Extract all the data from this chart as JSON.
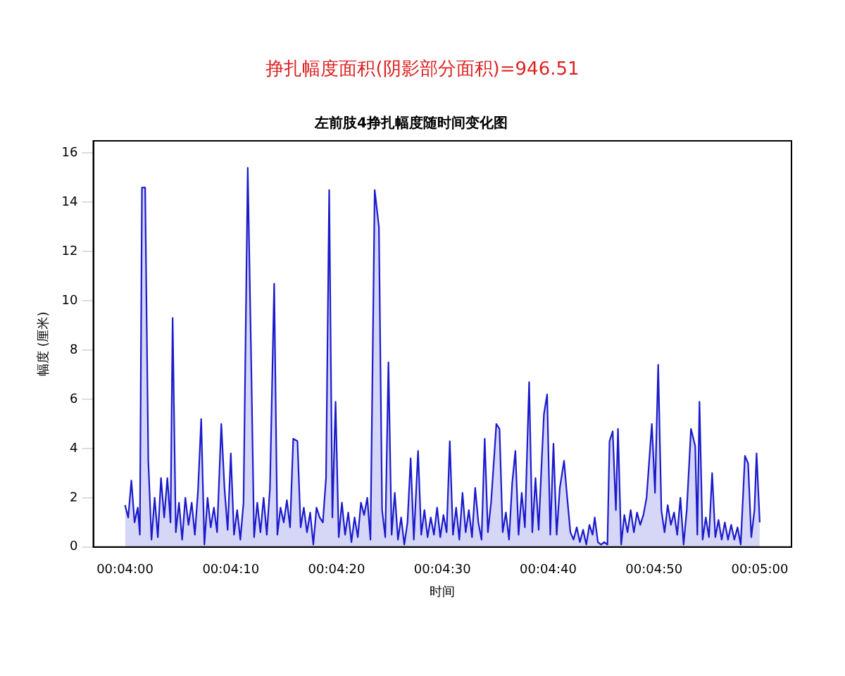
{
  "chart_data": {
    "type": "area",
    "title": "左前肢4挣扎幅度随时间变化图",
    "xlabel": "时间",
    "ylabel": "幅度 (厘米)",
    "annotations": [
      "挣扎幅度面积(阴影部分面积)=946.51"
    ],
    "x": [
      240,
      240.3,
      240.6,
      240.9,
      241.2,
      241.4,
      241.6,
      241.9,
      242.2,
      242.5,
      242.8,
      243.1,
      243.4,
      243.7,
      244.0,
      244.3,
      244.5,
      244.8,
      245.1,
      245.4,
      245.7,
      246.0,
      246.3,
      246.6,
      246.9,
      247.2,
      247.5,
      247.8,
      248.1,
      248.4,
      248.7,
      249.1,
      249.4,
      249.7,
      250.0,
      250.3,
      250.6,
      250.9,
      251.2,
      251.6,
      251.9,
      252.2,
      252.5,
      252.8,
      253.1,
      253.4,
      253.7,
      254.1,
      254.4,
      254.7,
      255.0,
      255.3,
      255.6,
      255.9,
      256.3,
      256.6,
      256.9,
      257.2,
      257.5,
      257.8,
      258.1,
      258.4,
      258.7,
      259.0,
      259.3,
      259.6,
      259.9,
      260.2,
      260.5,
      260.8,
      261.1,
      261.4,
      261.7,
      262.0,
      262.3,
      262.6,
      262.9,
      263.2,
      263.6,
      264.0,
      264.3,
      264.6,
      264.9,
      265.2,
      265.5,
      265.8,
      266.1,
      266.4,
      266.7,
      267.0,
      267.3,
      267.7,
      268.0,
      268.3,
      268.6,
      268.9,
      269.2,
      269.5,
      269.8,
      270.1,
      270.4,
      270.7,
      271.0,
      271.3,
      271.6,
      271.9,
      272.2,
      272.5,
      272.8,
      273.1,
      273.4,
      273.7,
      274.0,
      274.3,
      274.6,
      275.1,
      275.4,
      275.7,
      276.0,
      276.3,
      276.6,
      276.9,
      277.2,
      277.5,
      277.8,
      278.2,
      278.5,
      278.8,
      279.1,
      279.4,
      279.6,
      279.9,
      280.2,
      280.5,
      280.8,
      281.1,
      281.5,
      281.8,
      282.1,
      282.4,
      282.7,
      283.0,
      283.3,
      283.6,
      283.9,
      284.2,
      284.4,
      284.7,
      285.0,
      285.3,
      285.6,
      285.8,
      286.1,
      286.4,
      286.6,
      286.9,
      287.2,
      287.5,
      287.8,
      288.1,
      288.4,
      288.7,
      289.0,
      289.3,
      289.8,
      290.1,
      290.4,
      290.7,
      291.0,
      291.3,
      291.6,
      291.9,
      292.2,
      292.5,
      292.8,
      293.1,
      293.5,
      293.9,
      294.1,
      294.3,
      294.6,
      294.9,
      295.2,
      295.5,
      295.8,
      296.1,
      296.4,
      296.7,
      297.0,
      297.3,
      297.6,
      297.9,
      298.2,
      298.6,
      298.9,
      299.2,
      299.5,
      299.7,
      300.0
    ],
    "series": [
      {
        "color": "#1a1acc",
        "values": [
          1.7,
          1.2,
          2.7,
          1.0,
          1.6,
          0.5,
          14.6,
          14.6,
          3.5,
          0.3,
          2.0,
          0.4,
          2.8,
          1.2,
          2.8,
          1.0,
          9.3,
          0.6,
          1.8,
          0.3,
          2.0,
          0.9,
          1.8,
          0.5,
          2.3,
          5.2,
          0.1,
          2.0,
          0.8,
          1.6,
          0.6,
          5.0,
          2.4,
          0.7,
          3.8,
          0.5,
          1.5,
          0.3,
          1.8,
          15.4,
          8.2,
          0.4,
          1.8,
          0.6,
          2.0,
          0.5,
          2.4,
          10.7,
          0.5,
          1.6,
          1.0,
          1.9,
          0.8,
          4.4,
          4.3,
          0.8,
          1.6,
          0.6,
          1.4,
          0.1,
          1.6,
          1.2,
          1.0,
          2.8,
          14.5,
          1.2,
          5.9,
          0.4,
          1.8,
          0.5,
          1.4,
          0.2,
          1.2,
          0.4,
          1.8,
          1.3,
          2.0,
          0.3,
          14.5,
          13.0,
          1.5,
          0.4,
          7.5,
          0.5,
          2.2,
          0.3,
          1.2,
          0.1,
          1.0,
          3.6,
          0.3,
          3.9,
          0.5,
          1.5,
          0.4,
          1.2,
          0.5,
          1.6,
          0.4,
          1.3,
          0.6,
          4.3,
          0.5,
          1.6,
          0.3,
          2.2,
          0.6,
          1.5,
          0.4,
          2.4,
          1.0,
          0.3,
          4.4,
          0.6,
          1.8,
          5.0,
          4.8,
          0.6,
          1.4,
          0.3,
          2.6,
          3.9,
          0.5,
          2.2,
          0.8,
          6.7,
          0.6,
          2.8,
          0.7,
          3.6,
          5.4,
          6.2,
          0.5,
          4.2,
          0.5,
          2.4,
          3.5,
          2.0,
          0.6,
          0.3,
          0.8,
          0.2,
          0.7,
          0.1,
          0.9,
          0.5,
          1.2,
          0.2,
          0.1,
          0.2,
          0.1,
          4.3,
          4.7,
          1.5,
          4.8,
          0.1,
          1.3,
          0.6,
          1.5,
          0.6,
          1.4,
          0.9,
          1.3,
          2.0,
          5.0,
          2.2,
          7.4,
          1.5,
          0.6,
          1.7,
          0.9,
          1.4,
          0.5,
          2.0,
          0.1,
          1.5,
          4.8,
          4.1,
          0.5,
          5.9,
          0.3,
          1.2,
          0.4,
          3.0,
          0.4,
          1.1,
          0.3,
          1.0,
          0.3,
          0.9,
          0.3,
          0.8,
          0.1,
          3.7,
          3.4,
          0.4,
          1.5,
          3.8,
          1.0
        ]
      }
    ],
    "xlim": [
      237,
      303
    ],
    "xticks": [
      {
        "value": 240,
        "label": "00:04:00"
      },
      {
        "value": 250,
        "label": "00:04:10"
      },
      {
        "value": 260,
        "label": "00:04:20"
      },
      {
        "value": 270,
        "label": "00:04:30"
      },
      {
        "value": 280,
        "label": "00:04:40"
      },
      {
        "value": 290,
        "label": "00:04:50"
      },
      {
        "value": 300,
        "label": "00:05:00"
      }
    ],
    "ylim": [
      0,
      16.5
    ],
    "yticks": [
      0,
      2,
      4,
      6,
      8,
      10,
      12,
      14,
      16
    ],
    "legend": false
  }
}
